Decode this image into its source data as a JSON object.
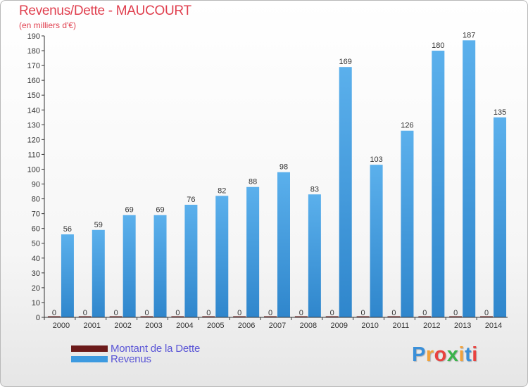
{
  "chart_data": {
    "type": "bar",
    "title": "Revenus/Dette - MAUCOURT",
    "subtitle": "(en milliers d'€)",
    "categories": [
      "2000",
      "2001",
      "2002",
      "2003",
      "2004",
      "2005",
      "2006",
      "2007",
      "2008",
      "2009",
      "2010",
      "2011",
      "2012",
      "2013",
      "2014"
    ],
    "series": [
      {
        "name": "Montant de la Dette",
        "color": "#6b1a1a",
        "values": [
          0,
          0,
          0,
          0,
          0,
          0,
          0,
          0,
          0,
          0,
          0,
          0,
          0,
          0,
          0
        ]
      },
      {
        "name": "Revenus",
        "color": "#3d9ae0",
        "values": [
          56,
          59,
          69,
          69,
          76,
          82,
          88,
          98,
          83,
          169,
          103,
          126,
          180,
          187,
          135
        ]
      }
    ],
    "ylim": [
      0,
      190
    ],
    "yticks": [
      0,
      10,
      20,
      30,
      40,
      50,
      60,
      70,
      80,
      90,
      100,
      110,
      120,
      130,
      140,
      150,
      160,
      170,
      180,
      190
    ],
    "grid": false,
    "legend_position": "bottom-left"
  },
  "brand": {
    "logo_letters": [
      "P",
      "r",
      "o",
      "x",
      "i",
      "t",
      "i"
    ],
    "logo_colors": [
      "#3a8fd8",
      "#f2a23a",
      "#e8423f",
      "#3ab34a",
      "#f2a23a",
      "#3a8fd8",
      "#e8423f"
    ]
  }
}
